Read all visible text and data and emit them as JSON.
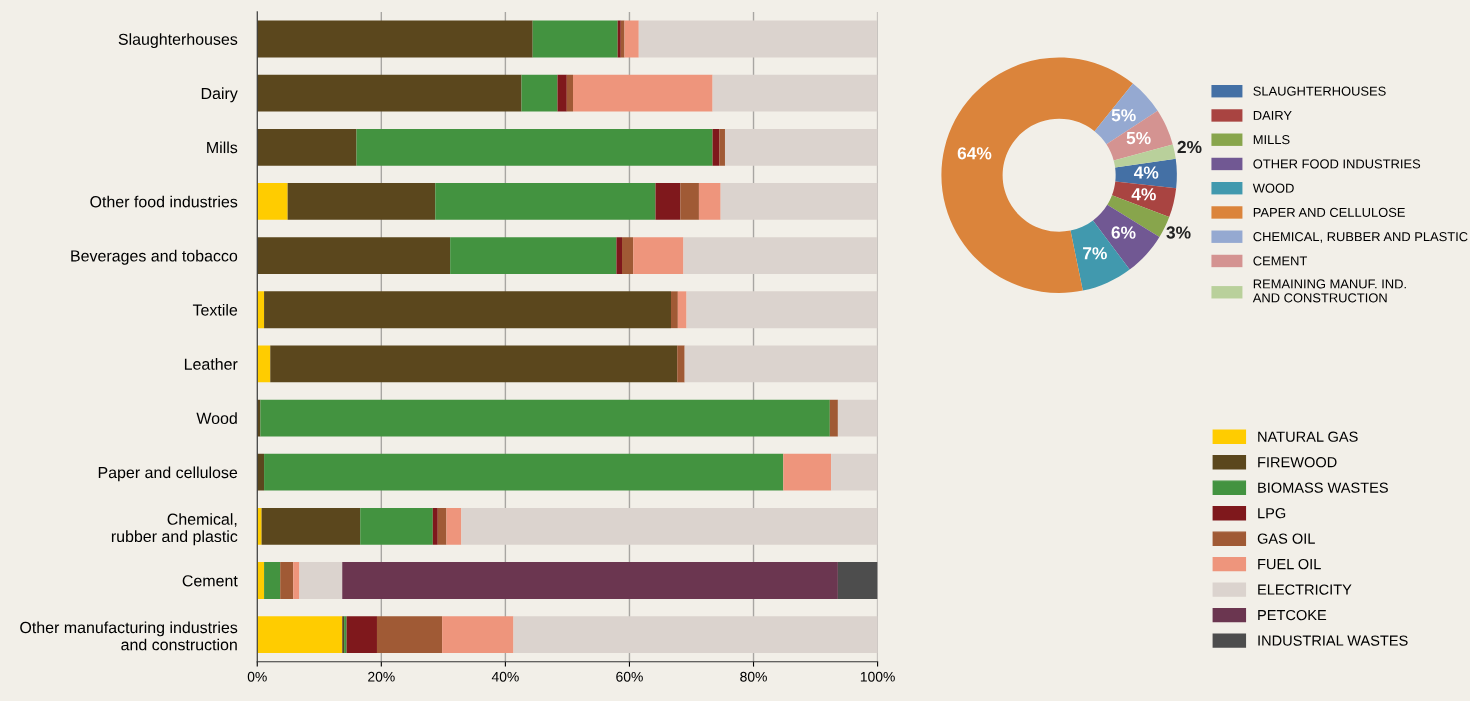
{
  "chart_data": [
    {
      "type": "bar",
      "orientation": "horizontal",
      "stacked": true,
      "grid": "x",
      "legend": "right",
      "categories": [
        "Slaughterhouses",
        "Dairy",
        "Mills",
        "Other food industries",
        "Beverages and tobacco",
        "Textile",
        "Leather",
        "Wood",
        "Paper and cellulose",
        "Chemical,\nrubber and plastic",
        "Cement",
        "Other manufacturing industries\nand construction"
      ],
      "xlim": [
        0,
        100
      ],
      "xticks": [
        {
          "value": 0,
          "label": "0%"
        },
        {
          "value": 20,
          "label": "20%"
        },
        {
          "value": 40,
          "label": "40%"
        },
        {
          "value": 60,
          "label": "60%"
        },
        {
          "value": 80,
          "label": "80%"
        },
        {
          "value": 100,
          "label": "100%"
        }
      ],
      "series": [
        {
          "name": "NATURAL GAS",
          "color": "#ffcc00",
          "values": [
            null,
            0,
            0,
            4.9,
            null,
            1.1,
            2.1,
            0,
            0,
            0.7,
            1.1,
            13.7
          ]
        },
        {
          "name": "FIREWOOD",
          "color": "#5b471d",
          "values": [
            44.4,
            42.6,
            16.0,
            23.8,
            31.1,
            65.6,
            65.6,
            0.5,
            1.1,
            15.9,
            0,
            0.3
          ]
        },
        {
          "name": "BIOMASS WASTES",
          "color": "#439340",
          "values": [
            13.7,
            5.8,
            57.4,
            35.5,
            26.8,
            0,
            0,
            91.8,
            83.7,
            11.7,
            2.6,
            0.4
          ]
        },
        {
          "name": "LPG",
          "color": "#7f181c",
          "values": [
            0.5,
            1.5,
            1.1,
            4.0,
            0.9,
            0,
            0,
            0,
            0,
            0.8,
            0,
            4.9
          ]
        },
        {
          "name": "GAS OIL",
          "color": "#a05a35",
          "values": [
            0.6,
            1.0,
            0.9,
            3.0,
            1.8,
            1.1,
            1.2,
            1.3,
            0,
            1.4,
            2.1,
            10.5
          ]
        },
        {
          "name": "FUEL OIL",
          "color": "#ee957c",
          "values": [
            2.3,
            22.5,
            0,
            3.5,
            8.1,
            1.4,
            0,
            0,
            7.7,
            2.4,
            1.0,
            11.5
          ]
        },
        {
          "name": "ELECTRICITY",
          "color": "#dbd3ce",
          "values": [
            38.4,
            26.6,
            24.6,
            25.3,
            31.2,
            30.8,
            31.1,
            6.4,
            7.5,
            67.1,
            6.9,
            58.7
          ]
        },
        {
          "name": "PETCOKE",
          "color": "#6b3650",
          "values": [
            0,
            0,
            0,
            0,
            0,
            0,
            0,
            0,
            0,
            0,
            79.9,
            0
          ]
        },
        {
          "name": "INDUSTRIAL WASTES",
          "color": "#4d4d4d",
          "values": [
            0,
            0,
            0,
            0,
            0,
            0,
            0,
            0,
            0,
            0,
            6.4,
            0
          ]
        }
      ]
    },
    {
      "type": "donut",
      "legend": "right",
      "categories": [
        "SLAUGHTERHOUSES",
        "DAIRY",
        "MILLS",
        "OTHER FOOD INDUSTRIES",
        "WOOD",
        "PAPER AND CELLULOSE",
        "CHEMICAL, RUBBER AND PLASTIC",
        "CEMENT",
        "REMAINING MANUF. IND.\nAND CONSTRUCTION"
      ],
      "values": [
        4,
        4,
        3,
        6,
        7,
        64,
        5,
        5,
        2
      ],
      "value_labels": [
        "4%",
        "4%",
        "3%",
        "6%",
        "7%",
        "64%",
        "5%",
        "5%",
        "2%"
      ],
      "colors": [
        "#4470a5",
        "#a94441",
        "#88a54c",
        "#715893",
        "#4199ae",
        "#db843b",
        "#95a9d1",
        "#d49391",
        "#b9d09b"
      ]
    }
  ]
}
